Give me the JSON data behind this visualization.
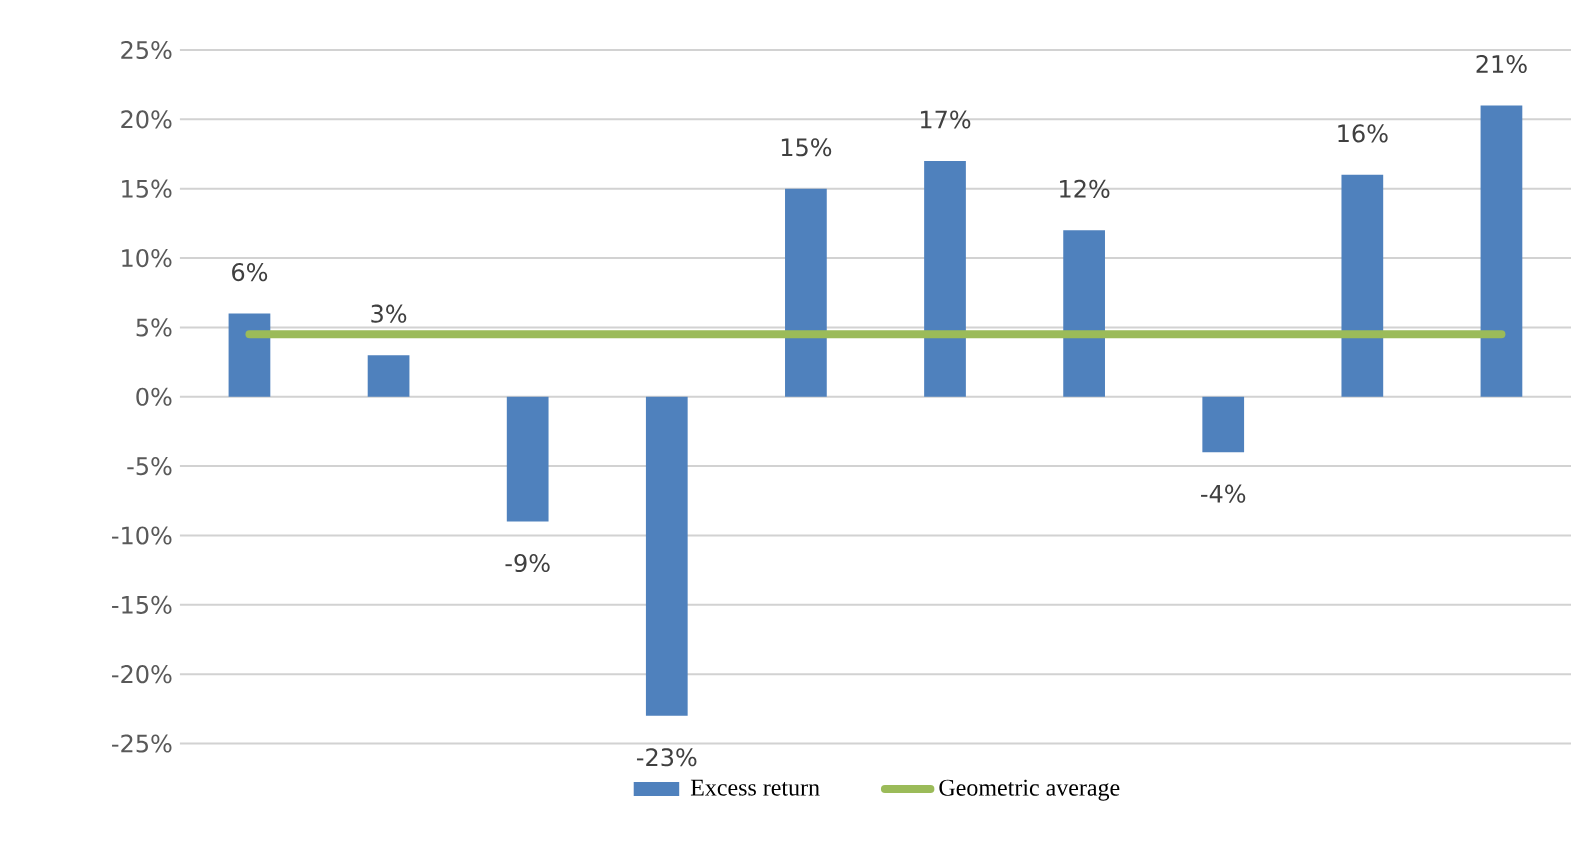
{
  "chart_data": {
    "type": "bar",
    "categories": [
      null,
      null,
      null,
      null,
      null,
      null,
      null,
      null,
      null,
      null
    ],
    "series": [
      {
        "name": "Excess return",
        "color": "#4f81bd",
        "values": [
          6,
          3,
          -9,
          -23,
          15,
          17,
          12,
          -4,
          16,
          21
        ],
        "value_labels": [
          "6%",
          "3%",
          "-9%",
          "-23%",
          "15%",
          "17%",
          "12%",
          "-4%",
          "16%",
          "21%"
        ]
      },
      {
        "name": "Geometric average",
        "type": "line",
        "color": "#9bbb59",
        "values": [
          4.5,
          4.5,
          4.5,
          4.5,
          4.5,
          4.5,
          4.5,
          4.5,
          4.5,
          4.5
        ]
      }
    ],
    "ylim": [
      -25,
      25
    ],
    "yticks": [
      {
        "value": -25,
        "label": "-25%"
      },
      {
        "value": -20,
        "label": "-20%"
      },
      {
        "value": -15,
        "label": "-15%"
      },
      {
        "value": -10,
        "label": "-10%"
      },
      {
        "value": -5,
        "label": "-5%"
      },
      {
        "value": 0,
        "label": "0%"
      },
      {
        "value": 5,
        "label": "5%"
      },
      {
        "value": 10,
        "label": "10%"
      },
      {
        "value": 15,
        "label": "15%"
      },
      {
        "value": 20,
        "label": "20%"
      },
      {
        "value": 25,
        "label": "25%"
      }
    ],
    "grid": "y",
    "legend": "bottom"
  }
}
